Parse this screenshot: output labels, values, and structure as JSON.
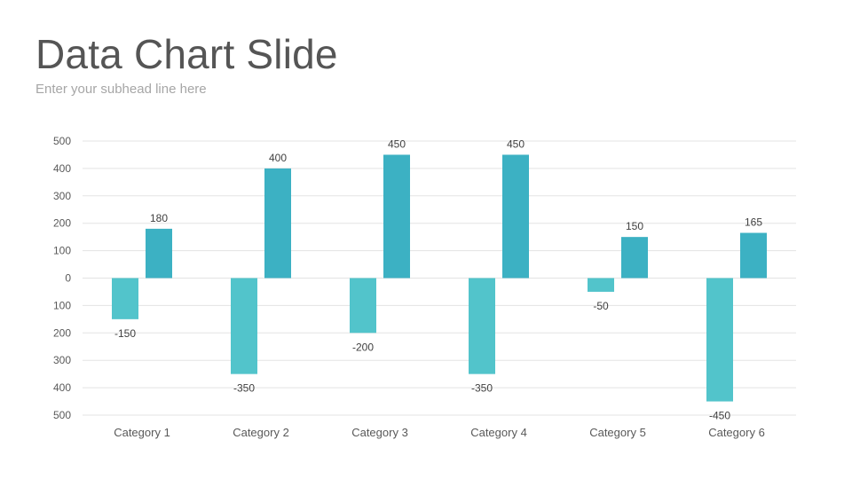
{
  "slide": {
    "title": "Data Chart Slide",
    "subtitle": "Enter your subhead line here"
  },
  "chart_data": {
    "type": "bar",
    "categories": [
      "Category 1",
      "Category 2",
      "Category 3",
      "Category 4",
      "Category 5",
      "Category 6"
    ],
    "series": [
      {
        "values": [
          -150,
          -350,
          -200,
          -350,
          -50,
          -450
        ],
        "color": "#52c4cb"
      },
      {
        "values": [
          180,
          400,
          450,
          450,
          150,
          165
        ],
        "color": "#3cb1c3"
      }
    ],
    "y_ticks": [
      {
        "value": 500,
        "label": "500"
      },
      {
        "value": 400,
        "label": "400"
      },
      {
        "value": 300,
        "label": "300"
      },
      {
        "value": 200,
        "label": "200"
      },
      {
        "value": 100,
        "label": "100"
      },
      {
        "value": 0,
        "label": "0"
      },
      {
        "value": -100,
        "label": "100"
      },
      {
        "value": -200,
        "label": "200"
      },
      {
        "value": -300,
        "label": "300"
      },
      {
        "value": -400,
        "label": "400"
      },
      {
        "value": -500,
        "label": "500"
      }
    ],
    "ylim": [
      -500,
      500
    ],
    "grid": true,
    "legend": "none",
    "gridline_color": "#e3e3e3"
  }
}
